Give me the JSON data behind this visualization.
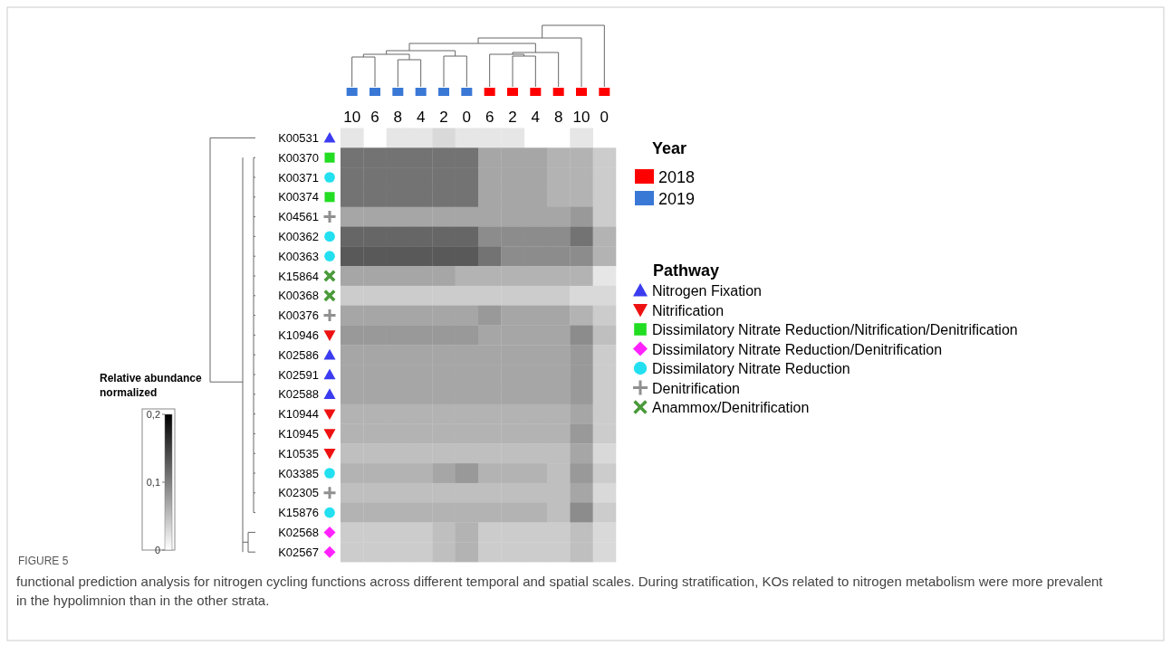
{
  "chart_data": {
    "type": "heatmap",
    "title": "FIGURE 5",
    "subtitle": "functional prediction analysis for nitrogen cycling functions across different temporal and spatial scales. During stratification, KOs related to nitrogen metabolism were more prevalent in the hypolimnion than in the other strata.",
    "clabel": "Relative abundance normalized",
    "categories": [
      "10",
      "6",
      "8",
      "4",
      "2",
      "0",
      "6",
      "2",
      "4",
      "8",
      "10",
      "0"
    ],
    "y_categories": [
      "K00531",
      "K00370",
      "K00371",
      "K00374",
      "K04561",
      "K00362",
      "K00363",
      "K15864",
      "K00368",
      "K00376",
      "K10946",
      "K02586",
      "K02591",
      "K02588",
      "K10944",
      "K10945",
      "K10535",
      "K03385",
      "K02305",
      "K15876",
      "K02568",
      "K02567"
    ],
    "cells": [
      [
        0.02,
        null,
        0.02,
        0.02,
        0.03,
        0.02,
        0.02,
        0.02,
        null,
        null,
        0.02,
        null
      ],
      [
        0.11,
        0.11,
        0.11,
        0.11,
        0.11,
        0.11,
        0.07,
        0.07,
        0.07,
        0.06,
        0.06,
        0.04
      ],
      [
        0.11,
        0.11,
        0.11,
        0.11,
        0.11,
        0.11,
        0.07,
        0.07,
        0.07,
        0.06,
        0.06,
        0.04
      ],
      [
        0.11,
        0.11,
        0.11,
        0.11,
        0.11,
        0.11,
        0.07,
        0.07,
        0.07,
        0.06,
        0.06,
        0.04
      ],
      [
        0.07,
        0.07,
        0.07,
        0.07,
        0.07,
        0.07,
        0.07,
        0.07,
        0.07,
        0.07,
        0.08,
        0.04
      ],
      [
        0.12,
        0.12,
        0.12,
        0.12,
        0.12,
        0.12,
        0.09,
        0.09,
        0.09,
        0.09,
        0.11,
        0.06
      ],
      [
        0.13,
        0.13,
        0.13,
        0.13,
        0.13,
        0.13,
        0.11,
        0.09,
        0.09,
        0.09,
        0.09,
        0.06
      ],
      [
        0.07,
        0.07,
        0.07,
        0.07,
        0.07,
        0.06,
        0.06,
        0.06,
        0.06,
        0.06,
        0.06,
        0.02
      ],
      [
        0.04,
        0.04,
        0.04,
        0.04,
        0.04,
        0.04,
        0.04,
        0.04,
        0.04,
        0.04,
        0.03,
        0.03
      ],
      [
        0.07,
        0.07,
        0.07,
        0.07,
        0.07,
        0.07,
        0.08,
        0.07,
        0.07,
        0.07,
        0.06,
        0.04
      ],
      [
        0.08,
        0.08,
        0.08,
        0.08,
        0.08,
        0.08,
        0.07,
        0.07,
        0.07,
        0.07,
        0.09,
        0.05
      ],
      [
        0.07,
        0.07,
        0.07,
        0.07,
        0.07,
        0.07,
        0.07,
        0.07,
        0.07,
        0.07,
        0.08,
        0.04
      ],
      [
        0.07,
        0.07,
        0.07,
        0.07,
        0.07,
        0.07,
        0.07,
        0.07,
        0.07,
        0.07,
        0.08,
        0.04
      ],
      [
        0.07,
        0.07,
        0.07,
        0.07,
        0.07,
        0.07,
        0.07,
        0.07,
        0.07,
        0.07,
        0.08,
        0.04
      ],
      [
        0.06,
        0.06,
        0.06,
        0.06,
        0.06,
        0.06,
        0.06,
        0.06,
        0.06,
        0.06,
        0.07,
        0.04
      ],
      [
        0.06,
        0.06,
        0.06,
        0.06,
        0.06,
        0.06,
        0.06,
        0.06,
        0.06,
        0.06,
        0.08,
        0.04
      ],
      [
        0.05,
        0.05,
        0.05,
        0.05,
        0.05,
        0.05,
        0.05,
        0.05,
        0.05,
        0.05,
        0.07,
        0.03
      ],
      [
        0.06,
        0.06,
        0.06,
        0.06,
        0.07,
        0.08,
        0.06,
        0.06,
        0.06,
        0.05,
        0.08,
        0.04
      ],
      [
        0.05,
        0.05,
        0.05,
        0.05,
        0.05,
        0.05,
        0.05,
        0.05,
        0.05,
        0.05,
        0.07,
        0.03
      ],
      [
        0.06,
        0.06,
        0.06,
        0.06,
        0.06,
        0.06,
        0.06,
        0.06,
        0.06,
        0.05,
        0.09,
        0.04
      ],
      [
        0.04,
        0.04,
        0.04,
        0.04,
        0.05,
        0.06,
        0.04,
        0.04,
        0.04,
        0.04,
        0.05,
        0.03
      ],
      [
        0.04,
        0.04,
        0.04,
        0.04,
        0.05,
        0.06,
        0.04,
        0.04,
        0.04,
        0.04,
        0.05,
        0.03
      ]
    ],
    "clim": [
      0,
      0.2
    ],
    "cticks": [
      {
        "value": 0,
        "label": "0"
      },
      {
        "value": 0.1,
        "label": "0,1"
      },
      {
        "value": 0.2,
        "label": "0,2"
      }
    ],
    "annotations": [
      "Year",
      "2018",
      "2019",
      "Pathway",
      "Nitrogen Fixation",
      "Nitrification",
      "Dissimilatory Nitrate Reduction/Nitrification/Denitrification",
      "Dissimilatory Nitrate Reduction/Denitrification",
      "Dissimilatory Nitrate Reduction",
      "Denitrification",
      "Anammox/Denitrification"
    ]
  }
}
